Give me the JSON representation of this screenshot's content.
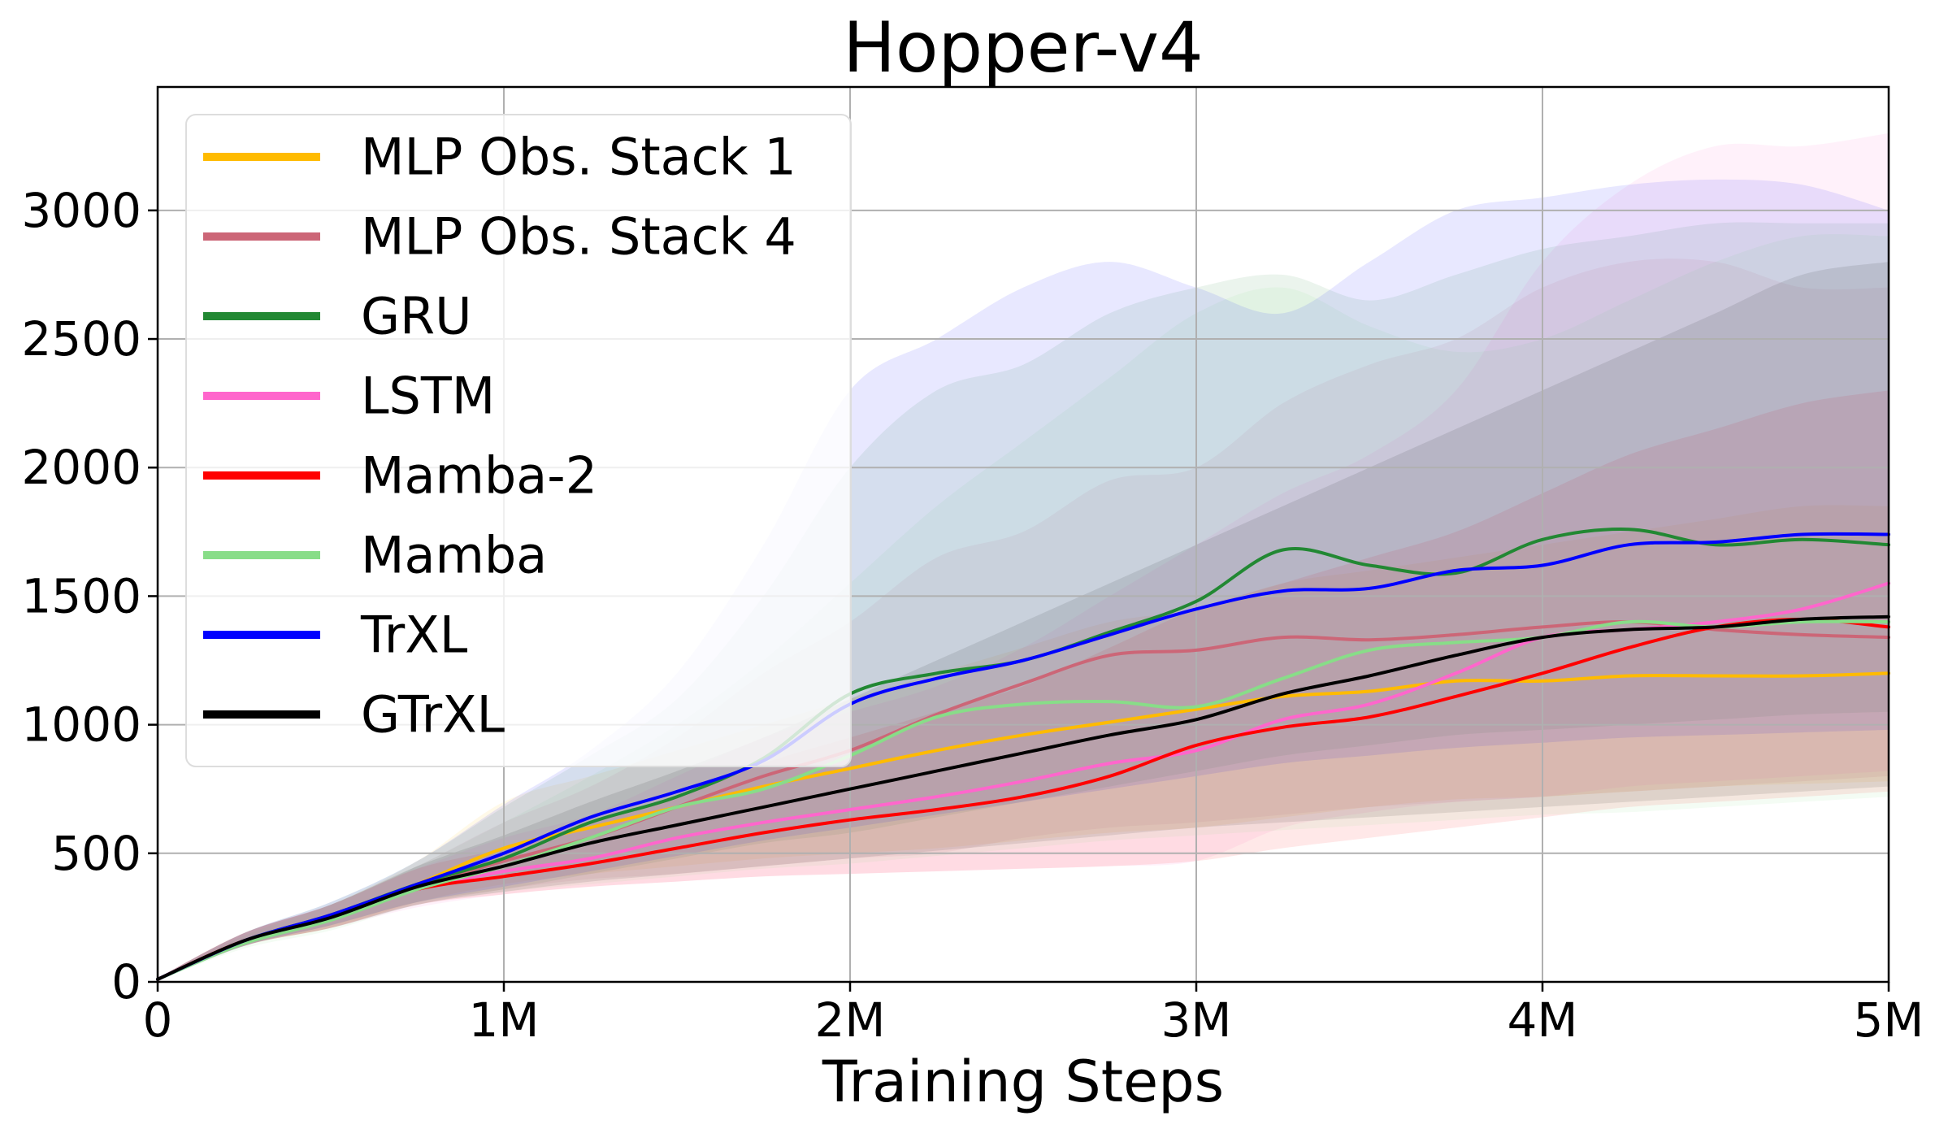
{
  "chart_data": {
    "type": "line",
    "title": "Hopper-v4",
    "xlabel": "Training Steps",
    "ylabel": "",
    "xlim": [
      0,
      5000000
    ],
    "ylim": [
      0,
      3480
    ],
    "grid": true,
    "legend_position": "upper-left",
    "x_ticks": [
      {
        "value": 0,
        "label": "0"
      },
      {
        "value": 1000000,
        "label": "1M"
      },
      {
        "value": 2000000,
        "label": "2M"
      },
      {
        "value": 3000000,
        "label": "3M"
      },
      {
        "value": 4000000,
        "label": "4M"
      },
      {
        "value": 5000000,
        "label": "5M"
      }
    ],
    "y_ticks": [
      {
        "value": 0,
        "label": "0"
      },
      {
        "value": 500,
        "label": "500"
      },
      {
        "value": 1000,
        "label": "1000"
      },
      {
        "value": 1500,
        "label": "1500"
      },
      {
        "value": 2000,
        "label": "2000"
      },
      {
        "value": 2500,
        "label": "2500"
      },
      {
        "value": 3000,
        "label": "3000"
      }
    ],
    "x": [
      0,
      250000,
      500000,
      750000,
      1000000,
      1250000,
      1500000,
      1750000,
      2000000,
      2250000,
      2500000,
      2750000,
      3000000,
      3250000,
      3500000,
      3750000,
      4000000,
      4250000,
      4500000,
      4750000,
      5000000
    ],
    "series": [
      {
        "name": "MLP Obs. Stack 1",
        "color": "#ffbb00",
        "values": [
          10,
          160,
          250,
          380,
          520,
          600,
          680,
          760,
          830,
          900,
          960,
          1010,
          1060,
          1110,
          1130,
          1170,
          1170,
          1190,
          1190,
          1190,
          1200
        ],
        "lower": [
          5,
          140,
          210,
          310,
          380,
          420,
          450,
          480,
          500,
          520,
          550,
          580,
          600,
          640,
          680,
          710,
          720,
          740,
          760,
          770,
          780
        ],
        "upper": [
          15,
          190,
          300,
          470,
          700,
          800,
          900,
          1000,
          1100,
          1200,
          1300,
          1400,
          1450,
          1550,
          1600,
          1650,
          1700,
          1750,
          1800,
          1850,
          1850
        ]
      },
      {
        "name": "MLP Obs. Stack 4",
        "color": "#cc6677",
        "values": [
          10,
          160,
          250,
          370,
          470,
          560,
          680,
          800,
          900,
          1040,
          1160,
          1270,
          1290,
          1340,
          1330,
          1350,
          1380,
          1400,
          1370,
          1350,
          1340
        ],
        "lower": [
          5,
          140,
          210,
          300,
          360,
          400,
          420,
          450,
          480,
          500,
          560,
          600,
          620,
          650,
          680,
          700,
          720,
          740,
          760,
          780,
          800
        ],
        "upper": [
          15,
          190,
          300,
          450,
          620,
          760,
          950,
          1200,
          1400,
          1650,
          1750,
          1950,
          2000,
          2250,
          2400,
          2500,
          2700,
          2800,
          2800,
          2700,
          2700
        ]
      },
      {
        "name": "GRU",
        "color": "#228833",
        "values": [
          10,
          160,
          260,
          380,
          480,
          620,
          720,
          870,
          1120,
          1200,
          1250,
          1360,
          1480,
          1680,
          1620,
          1590,
          1720,
          1760,
          1700,
          1720,
          1700
        ],
        "lower": [
          5,
          140,
          220,
          310,
          360,
          420,
          480,
          540,
          580,
          640,
          700,
          760,
          820,
          880,
          920,
          960,
          980,
          1000,
          1020,
          1040,
          1050
        ],
        "upper": [
          15,
          190,
          310,
          470,
          680,
          880,
          1100,
          1500,
          2000,
          2300,
          2400,
          2600,
          2700,
          2750,
          2650,
          2750,
          2850,
          2900,
          2950,
          2950,
          2950
        ]
      },
      {
        "name": "LSTM",
        "color": "#ff66cc",
        "values": [
          10,
          160,
          250,
          360,
          430,
          480,
          560,
          620,
          670,
          720,
          780,
          850,
          900,
          1020,
          1080,
          1200,
          1340,
          1370,
          1400,
          1450,
          1550
        ],
        "lower": [
          5,
          140,
          210,
          290,
          340,
          370,
          390,
          410,
          420,
          430,
          440,
          450,
          470,
          600,
          660,
          700,
          720,
          760,
          780,
          800,
          820
        ],
        "upper": [
          15,
          190,
          300,
          440,
          560,
          650,
          800,
          950,
          1050,
          1150,
          1300,
          1500,
          1700,
          1900,
          2050,
          2300,
          2800,
          3100,
          3250,
          3250,
          3300
        ]
      },
      {
        "name": "Mamba-2",
        "color": "#ff0000",
        "values": [
          10,
          160,
          250,
          360,
          410,
          460,
          520,
          580,
          630,
          670,
          720,
          800,
          920,
          990,
          1030,
          1110,
          1200,
          1300,
          1380,
          1410,
          1380
        ],
        "lower": [
          5,
          140,
          210,
          300,
          340,
          370,
          390,
          410,
          420,
          430,
          440,
          450,
          470,
          520,
          560,
          600,
          640,
          680,
          700,
          720,
          740
        ],
        "upper": [
          15,
          190,
          300,
          440,
          520,
          620,
          720,
          850,
          950,
          1050,
          1150,
          1300,
          1450,
          1550,
          1650,
          1750,
          1900,
          2050,
          2150,
          2250,
          2300
        ]
      },
      {
        "name": "Mamba",
        "color": "#88dd88",
        "values": [
          10,
          150,
          240,
          360,
          450,
          560,
          680,
          750,
          880,
          1030,
          1080,
          1090,
          1070,
          1180,
          1290,
          1320,
          1340,
          1400,
          1380,
          1400,
          1400
        ],
        "lower": [
          5,
          130,
          200,
          300,
          350,
          380,
          410,
          440,
          460,
          490,
          520,
          550,
          570,
          590,
          610,
          630,
          650,
          660,
          680,
          700,
          720
        ],
        "upper": [
          15,
          180,
          300,
          450,
          620,
          800,
          1000,
          1250,
          1550,
          1850,
          2100,
          2350,
          2600,
          2700,
          2550,
          2450,
          2500,
          2650,
          2800,
          2900,
          2900
        ]
      },
      {
        "name": "TrXL",
        "color": "#0000ff",
        "values": [
          10,
          160,
          260,
          380,
          500,
          640,
          740,
          860,
          1080,
          1180,
          1250,
          1350,
          1450,
          1520,
          1530,
          1600,
          1620,
          1700,
          1710,
          1740,
          1740
        ],
        "lower": [
          5,
          140,
          220,
          310,
          370,
          430,
          490,
          550,
          600,
          650,
          700,
          750,
          800,
          850,
          880,
          910,
          930,
          950,
          960,
          970,
          980
        ],
        "upper": [
          15,
          190,
          310,
          470,
          690,
          900,
          1200,
          1700,
          2300,
          2500,
          2700,
          2800,
          2700,
          2600,
          2800,
          3000,
          3050,
          3100,
          3120,
          3100,
          3000
        ]
      },
      {
        "name": "GTrXL",
        "color": "#000000",
        "values": [
          10,
          160,
          250,
          370,
          450,
          540,
          610,
          680,
          750,
          820,
          890,
          960,
          1020,
          1120,
          1190,
          1270,
          1340,
          1370,
          1380,
          1410,
          1420
        ],
        "lower": [
          5,
          140,
          210,
          300,
          350,
          390,
          420,
          450,
          480,
          510,
          540,
          570,
          600,
          620,
          640,
          660,
          680,
          700,
          720,
          740,
          760
        ],
        "upper": [
          15,
          190,
          300,
          450,
          570,
          700,
          820,
          950,
          1100,
          1250,
          1400,
          1550,
          1700,
          1850,
          2000,
          2150,
          2300,
          2450,
          2600,
          2750,
          2800
        ]
      }
    ]
  }
}
